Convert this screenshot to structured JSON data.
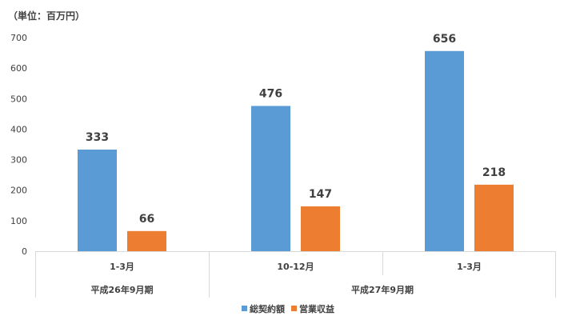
{
  "chart_data": {
    "type": "bar",
    "unit_label": "（単位：百万円）",
    "categories": [
      "1-3月",
      "10-12月",
      "1-3月"
    ],
    "groups": [
      {
        "label": "平成26年9月期",
        "span": 1
      },
      {
        "label": "平成27年9月期",
        "span": 2
      }
    ],
    "series": [
      {
        "name": "総契約額",
        "color": "#5B9BD5",
        "values": [
          333,
          476,
          656
        ]
      },
      {
        "name": "営業収益",
        "color": "#ED7D31",
        "values": [
          66,
          147,
          218
        ]
      }
    ],
    "ylim": [
      0,
      700
    ],
    "yticks": [
      0,
      100,
      200,
      300,
      400,
      500,
      600,
      700
    ],
    "grid": false,
    "legend_position": "bottom"
  }
}
